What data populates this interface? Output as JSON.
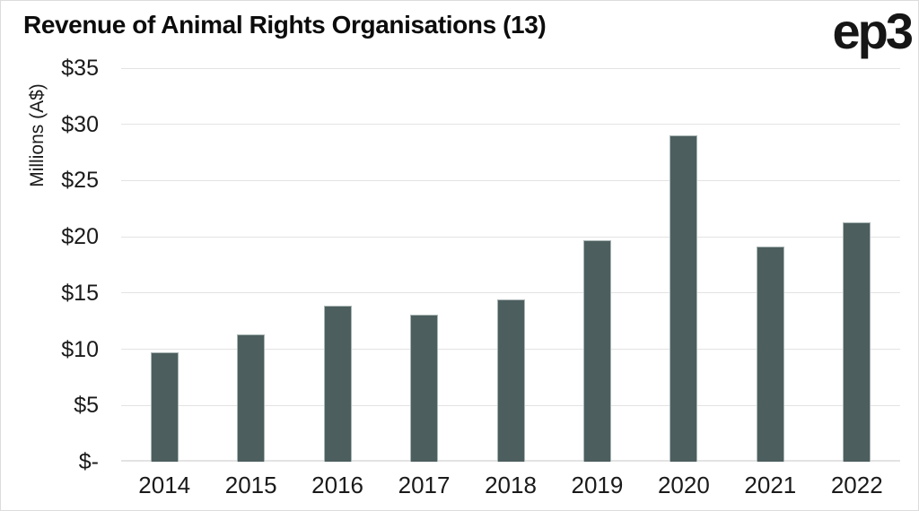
{
  "header": {
    "title": "Revenue of Animal Rights Organisations (13)",
    "logo": "ep3"
  },
  "chart_data": {
    "type": "bar",
    "title": "Revenue of Animal Rights Organisations (13)",
    "xlabel": "",
    "ylabel": "Millions (A$)",
    "categories": [
      "2014",
      "2015",
      "2016",
      "2017",
      "2018",
      "2019",
      "2020",
      "2021",
      "2022"
    ],
    "values": [
      9.7,
      11.3,
      13.9,
      13.1,
      14.4,
      19.7,
      29.0,
      19.1,
      21.3
    ],
    "ylim": [
      0,
      35
    ],
    "ytick_step": 5,
    "ytick_labels": [
      "$-",
      "$5",
      "$10",
      "$15",
      "$20",
      "$25",
      "$30",
      "$35"
    ],
    "grid": true,
    "legend": false,
    "colors": {
      "bar": "#4d5e5f",
      "bar_outline": "#a9b6b4",
      "gridline": "#e3e3e3",
      "text": "#1a1a1a",
      "background": "#ffffff",
      "frame_border": "#dcdcdc"
    }
  }
}
